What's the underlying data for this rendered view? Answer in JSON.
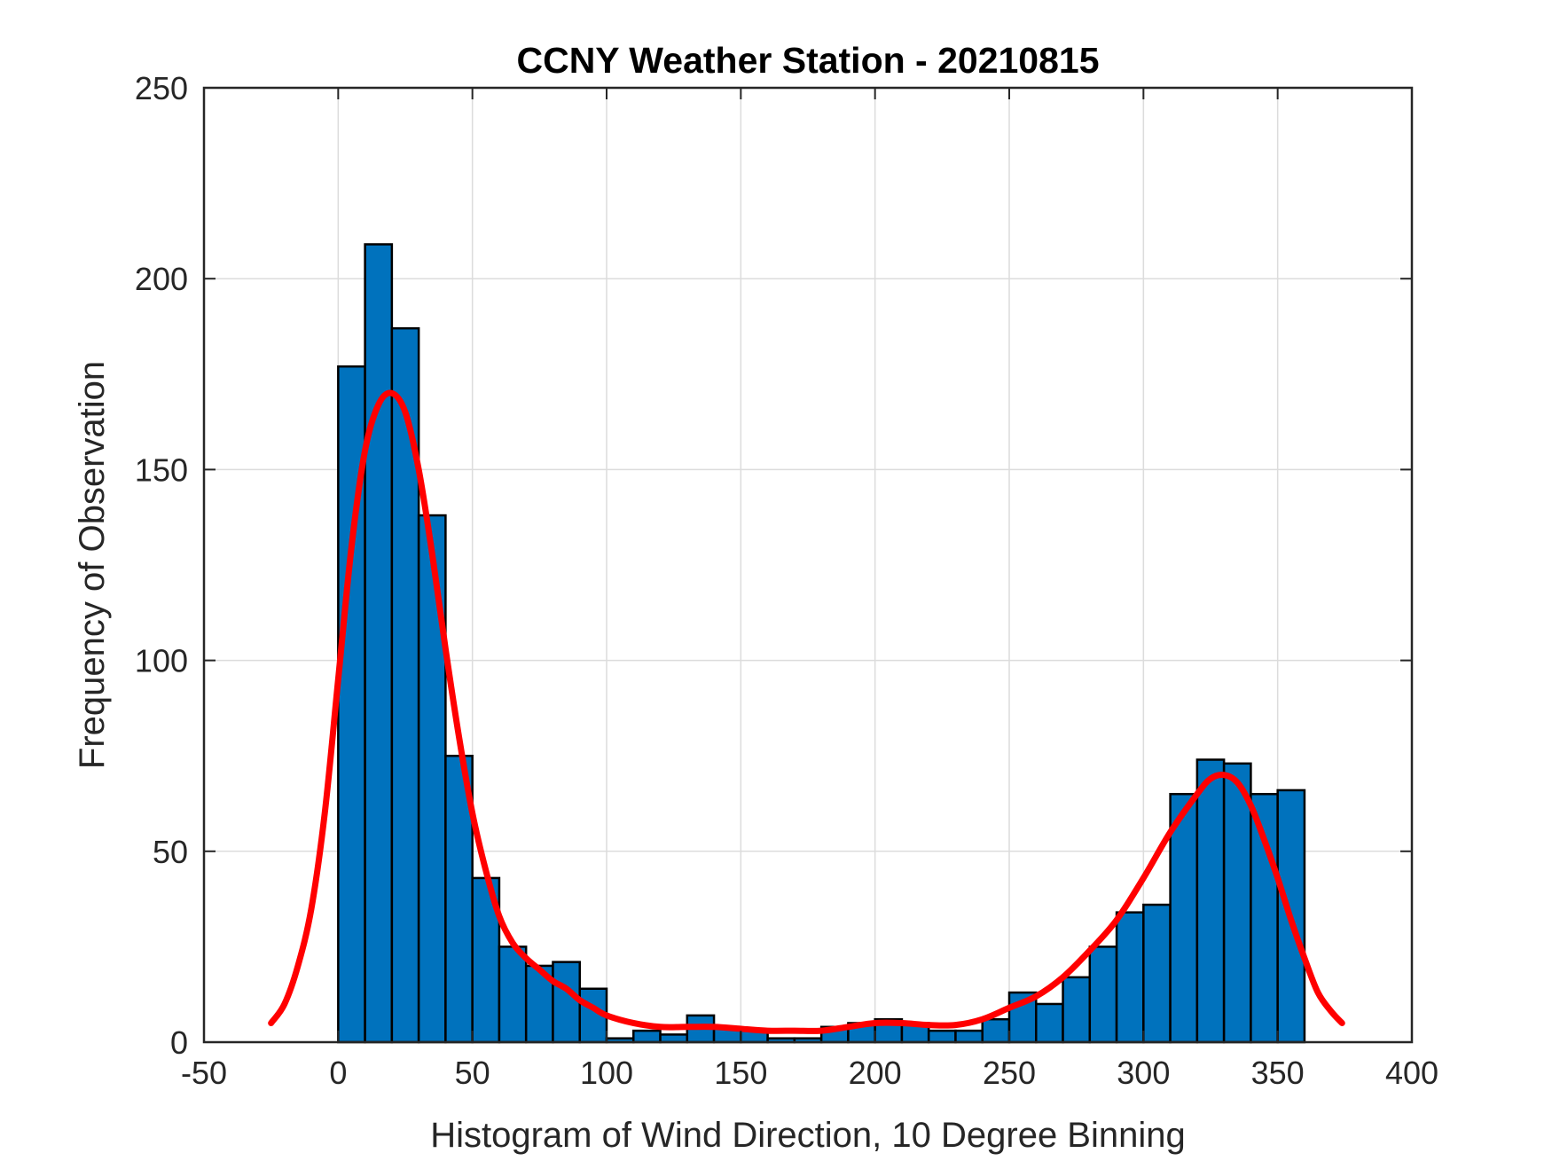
{
  "chart_data": {
    "type": "bar",
    "title": "CCNY Weather Station - 20210815",
    "xlabel": "Histogram of Wind Direction, 10 Degree Binning",
    "ylabel": "Frequency of Observation",
    "xlim": [
      -50,
      400
    ],
    "ylim": [
      0,
      250
    ],
    "xticks": [
      -50,
      0,
      50,
      100,
      150,
      200,
      250,
      300,
      350,
      400
    ],
    "yticks": [
      0,
      50,
      100,
      150,
      200,
      250
    ],
    "grid": true,
    "bin_width": 10,
    "bins": [
      {
        "start": 0,
        "count": 177
      },
      {
        "start": 10,
        "count": 209
      },
      {
        "start": 20,
        "count": 187
      },
      {
        "start": 30,
        "count": 138
      },
      {
        "start": 40,
        "count": 75
      },
      {
        "start": 50,
        "count": 43
      },
      {
        "start": 60,
        "count": 25
      },
      {
        "start": 70,
        "count": 20
      },
      {
        "start": 80,
        "count": 21
      },
      {
        "start": 90,
        "count": 14
      },
      {
        "start": 100,
        "count": 1
      },
      {
        "start": 110,
        "count": 3
      },
      {
        "start": 120,
        "count": 2
      },
      {
        "start": 130,
        "count": 7
      },
      {
        "start": 140,
        "count": 4
      },
      {
        "start": 150,
        "count": 3
      },
      {
        "start": 160,
        "count": 1
      },
      {
        "start": 170,
        "count": 1
      },
      {
        "start": 180,
        "count": 4
      },
      {
        "start": 190,
        "count": 5
      },
      {
        "start": 200,
        "count": 6
      },
      {
        "start": 210,
        "count": 5
      },
      {
        "start": 220,
        "count": 3
      },
      {
        "start": 230,
        "count": 3
      },
      {
        "start": 240,
        "count": 6
      },
      {
        "start": 250,
        "count": 13
      },
      {
        "start": 260,
        "count": 10
      },
      {
        "start": 270,
        "count": 17
      },
      {
        "start": 280,
        "count": 25
      },
      {
        "start": 290,
        "count": 34
      },
      {
        "start": 300,
        "count": 36
      },
      {
        "start": 310,
        "count": 65
      },
      {
        "start": 320,
        "count": 74
      },
      {
        "start": 330,
        "count": 73
      },
      {
        "start": 340,
        "count": 65
      },
      {
        "start": 350,
        "count": 66
      }
    ],
    "bar_color": "#0072bd",
    "bar_edge_color": "#000000",
    "fit_curve": {
      "color": "#ff0000",
      "points": [
        [
          -25,
          5
        ],
        [
          -20,
          10
        ],
        [
          -15,
          20
        ],
        [
          -10,
          35
        ],
        [
          -5,
          60
        ],
        [
          0,
          95
        ],
        [
          5,
          130
        ],
        [
          10,
          155
        ],
        [
          15,
          167
        ],
        [
          20,
          170
        ],
        [
          25,
          165
        ],
        [
          30,
          150
        ],
        [
          35,
          128
        ],
        [
          40,
          103
        ],
        [
          45,
          80
        ],
        [
          50,
          60
        ],
        [
          55,
          45
        ],
        [
          60,
          33
        ],
        [
          65,
          26
        ],
        [
          70,
          22
        ],
        [
          75,
          19
        ],
        [
          80,
          16
        ],
        [
          85,
          14
        ],
        [
          90,
          11
        ],
        [
          95,
          9
        ],
        [
          100,
          7
        ],
        [
          110,
          5
        ],
        [
          120,
          4
        ],
        [
          130,
          4
        ],
        [
          140,
          4
        ],
        [
          150,
          3.5
        ],
        [
          160,
          3
        ],
        [
          170,
          3
        ],
        [
          180,
          3
        ],
        [
          190,
          4
        ],
        [
          200,
          5
        ],
        [
          210,
          5
        ],
        [
          220,
          4.5
        ],
        [
          230,
          4.5
        ],
        [
          240,
          6
        ],
        [
          250,
          9
        ],
        [
          260,
          12
        ],
        [
          270,
          17
        ],
        [
          280,
          24
        ],
        [
          290,
          32
        ],
        [
          300,
          43
        ],
        [
          310,
          55
        ],
        [
          320,
          65
        ],
        [
          325,
          69
        ],
        [
          330,
          70
        ],
        [
          335,
          68
        ],
        [
          340,
          62
        ],
        [
          345,
          53
        ],
        [
          350,
          43
        ],
        [
          355,
          32
        ],
        [
          360,
          22
        ],
        [
          365,
          13
        ],
        [
          370,
          8
        ],
        [
          374,
          5
        ]
      ]
    }
  }
}
